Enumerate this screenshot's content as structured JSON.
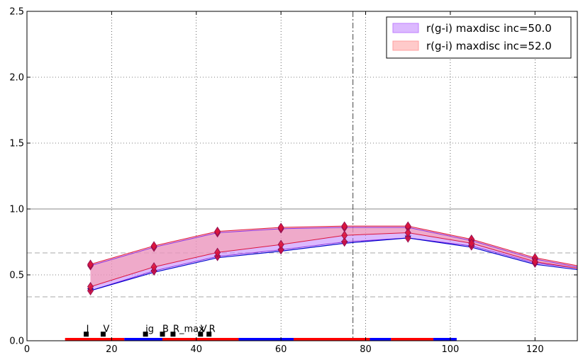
{
  "chart_data": {
    "type": "area",
    "xlim": [
      0,
      130
    ],
    "ylim": [
      0.0,
      2.5
    ],
    "x_ticks": [
      0,
      20,
      40,
      60,
      80,
      100,
      120
    ],
    "y_ticks": [
      0.0,
      0.5,
      1.0,
      1.5,
      2.0,
      2.5
    ],
    "x_tick_labels": [
      "0",
      "20",
      "40",
      "60",
      "80",
      "100",
      "120"
    ],
    "y_tick_labels": [
      "0.0",
      "0.5",
      "1.0",
      "1.5",
      "2.0",
      "2.5"
    ],
    "grid": true,
    "legend_position": "top-right",
    "bands": [
      {
        "name": "r(g-i) maxdisc inc=50.0",
        "fill_color": "#bf7fff",
        "edge_color": "#8a2be2",
        "x": [
          15,
          30,
          45,
          60,
          75,
          90,
          105,
          120,
          130
        ],
        "lower": [
          0.38,
          0.53,
          0.64,
          0.69,
          0.75,
          0.78,
          0.72,
          0.59,
          0.55
        ],
        "upper": [
          0.57,
          0.71,
          0.82,
          0.85,
          0.86,
          0.86,
          0.76,
          0.62,
          0.56
        ]
      },
      {
        "name": "r(g-i) maxdisc inc=52.0",
        "fill_color": "#ff9f9f",
        "edge_color": "#dc143c",
        "x": [
          15,
          30,
          45,
          60,
          75,
          90,
          105,
          120,
          130
        ],
        "lower": [
          0.41,
          0.56,
          0.67,
          0.73,
          0.8,
          0.82,
          0.74,
          0.6,
          0.55
        ],
        "upper": [
          0.58,
          0.72,
          0.83,
          0.86,
          0.87,
          0.87,
          0.77,
          0.63,
          0.57
        ]
      }
    ],
    "lower_line": {
      "color": "#0000cd",
      "x": [
        15,
        30,
        45,
        60,
        75,
        90,
        105,
        120,
        130
      ],
      "y": [
        0.38,
        0.52,
        0.63,
        0.68,
        0.74,
        0.78,
        0.71,
        0.58,
        0.54
      ]
    },
    "reference_lines": {
      "solid_y": 1.0,
      "dashed_y": [
        0.667,
        0.333
      ],
      "vertical_dashdot_x": 77
    },
    "bottom_segments": [
      {
        "x0": 9,
        "x1": 23,
        "color": "#ff0000"
      },
      {
        "x0": 23,
        "x1": 32,
        "color": "#0000ff"
      },
      {
        "x0": 32,
        "x1": 50,
        "color": "#ff0000"
      },
      {
        "x0": 50,
        "x1": 63,
        "color": "#0000ff"
      },
      {
        "x0": 63,
        "x1": 81,
        "color": "#ff0000"
      },
      {
        "x0": 81,
        "x1": 86,
        "color": "#0000ff"
      },
      {
        "x0": 86,
        "x1": 96,
        "color": "#ff0000"
      },
      {
        "x0": 96,
        "x1": 101.5,
        "color": "#0000ff"
      }
    ],
    "annotations": [
      {
        "x": 14,
        "y": 0.05,
        "label": "I"
      },
      {
        "x": 18,
        "y": 0.05,
        "label": "V"
      },
      {
        "x": 28,
        "y": 0.05,
        "label": "ig"
      },
      {
        "x": 32,
        "y": 0.05,
        "label": "B"
      },
      {
        "x": 34.5,
        "y": 0.05,
        "label": "R_max"
      },
      {
        "x": 41,
        "y": 0.05,
        "label": "V"
      },
      {
        "x": 43,
        "y": 0.05,
        "label": "R"
      }
    ]
  }
}
